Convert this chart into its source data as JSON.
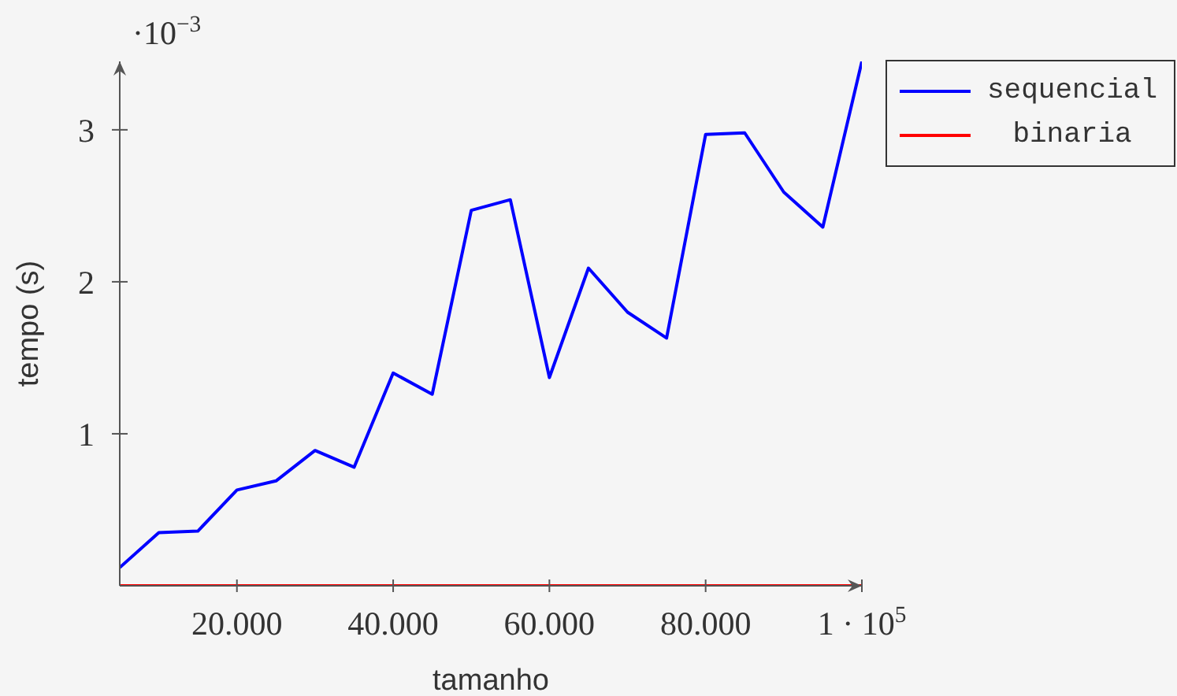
{
  "chart_data": {
    "type": "line",
    "xlabel": "tamanho",
    "ylabel": "tempo (s)",
    "annotations": [
      "·10$^{−3}$"
    ],
    "x": [
      5000,
      10000,
      15000,
      20000,
      25000,
      30000,
      35000,
      40000,
      45000,
      50000,
      55000,
      60000,
      65000,
      70000,
      75000,
      80000,
      85000,
      90000,
      95000,
      100000
    ],
    "series": [
      {
        "name": "sequencial",
        "color": "#0000ff",
        "values": [
          0.12,
          0.35,
          0.36,
          0.63,
          0.69,
          0.89,
          0.78,
          1.4,
          1.26,
          2.47,
          2.54,
          1.37,
          2.09,
          1.8,
          1.63,
          2.97,
          2.98,
          2.59,
          2.36,
          3.45
        ]
      },
      {
        "name": "binaria",
        "color": "#ff0000",
        "values": [
          0,
          0,
          0,
          0,
          0,
          0,
          0,
          0,
          0,
          0,
          0,
          0,
          0,
          0,
          0,
          0,
          0,
          0,
          0,
          0
        ]
      }
    ],
    "xlim": [
      5000,
      100000
    ],
    "ylim": [
      0,
      3.45
    ],
    "xticks": [
      {
        "value": 20000,
        "label": "20.000"
      },
      {
        "value": 40000,
        "label": "40.000"
      },
      {
        "value": 60000,
        "label": "60.000"
      },
      {
        "value": 80000,
        "label": "80.000"
      },
      {
        "value": 100000,
        "label": "1 · 10$^{5}$"
      }
    ],
    "yticks": [
      1,
      2,
      3
    ],
    "legend": "top right",
    "marker": "none"
  }
}
